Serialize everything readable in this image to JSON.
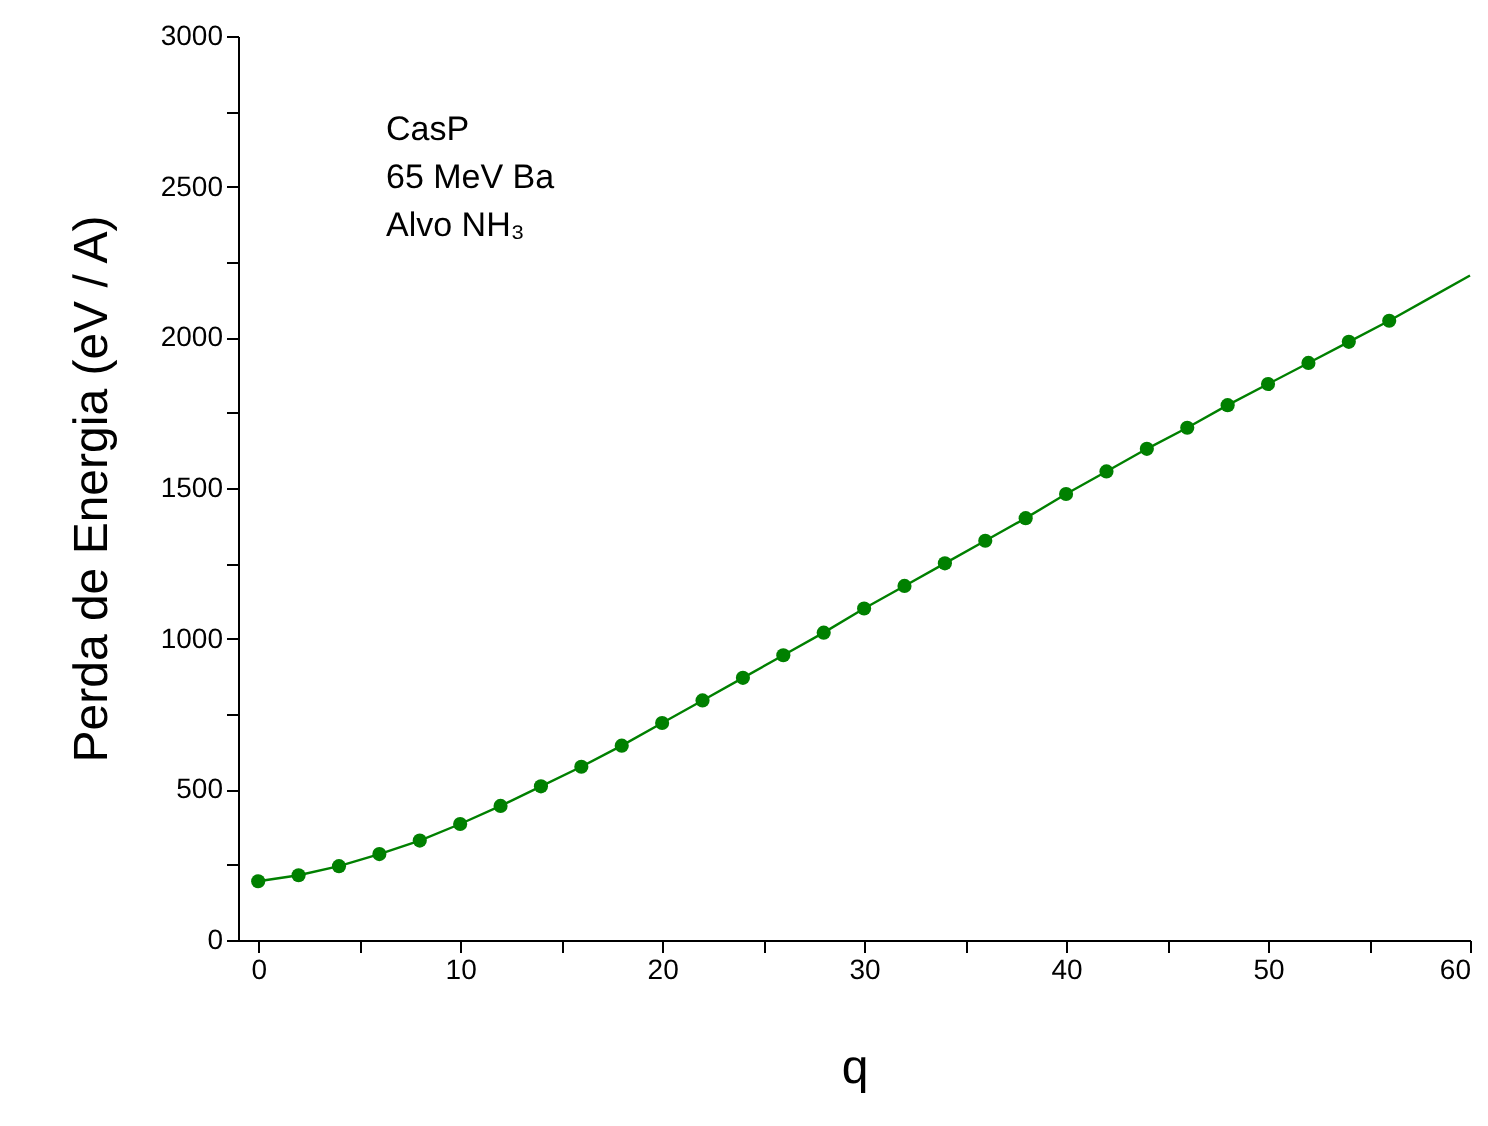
{
  "chart_data": {
    "type": "scatter",
    "xlabel": "q",
    "ylabel": "Perda de Energia   (eV / A)",
    "annotations": [
      "CasP",
      "65 MeV Ba",
      "Alvo NH₃"
    ],
    "xlim": [
      -1,
      60
    ],
    "ylim": [
      0,
      3000
    ],
    "xticks": [
      0,
      {
        "value": 5,
        "label": null
      },
      10,
      {
        "value": 15,
        "label": null
      },
      20,
      {
        "value": 25,
        "label": null
      },
      30,
      {
        "value": 35,
        "label": null
      },
      40,
      {
        "value": 45,
        "label": null
      },
      50,
      {
        "value": 55,
        "label": null
      },
      60
    ],
    "yticks": [
      0,
      {
        "value": 250,
        "label": null
      },
      500,
      {
        "value": 750,
        "label": null
      },
      1000,
      {
        "value": 1250,
        "label": null
      },
      1500,
      {
        "value": 1750,
        "label": null
      },
      2000,
      {
        "value": 2250,
        "label": null
      },
      2500,
      {
        "value": 2750,
        "label": null
      },
      3000
    ],
    "grid": false,
    "series": [
      {
        "marker": "circle",
        "color": "#008000",
        "x": [
          0,
          2,
          4,
          6,
          8,
          10,
          12,
          14,
          16,
          18,
          20,
          22,
          24,
          26,
          28,
          30,
          32,
          34,
          36,
          38,
          40,
          42,
          44,
          46,
          48,
          50,
          52,
          54,
          56
        ],
        "values": [
          195,
          215,
          245,
          285,
          330,
          385,
          445,
          510,
          575,
          645,
          720,
          795,
          870,
          945,
          1020,
          1100,
          1175,
          1250,
          1325,
          1400,
          1480,
          1555,
          1630,
          1700,
          1775,
          1845,
          1915,
          1985,
          2055
        ]
      },
      {
        "type": "line",
        "line_style": "solid",
        "color": "#008000",
        "x": [
          0,
          2,
          4,
          6,
          8,
          10,
          12,
          14,
          16,
          18,
          20,
          22,
          24,
          26,
          28,
          30,
          32,
          34,
          36,
          38,
          40,
          42,
          44,
          46,
          48,
          50,
          52,
          54,
          56,
          58,
          60
        ],
        "values": [
          195,
          215,
          245,
          285,
          330,
          385,
          445,
          510,
          575,
          645,
          720,
          795,
          870,
          945,
          1020,
          1100,
          1175,
          1250,
          1325,
          1400,
          1480,
          1555,
          1630,
          1700,
          1775,
          1845,
          1915,
          1985,
          2055,
          2130,
          2205
        ]
      }
    ]
  }
}
